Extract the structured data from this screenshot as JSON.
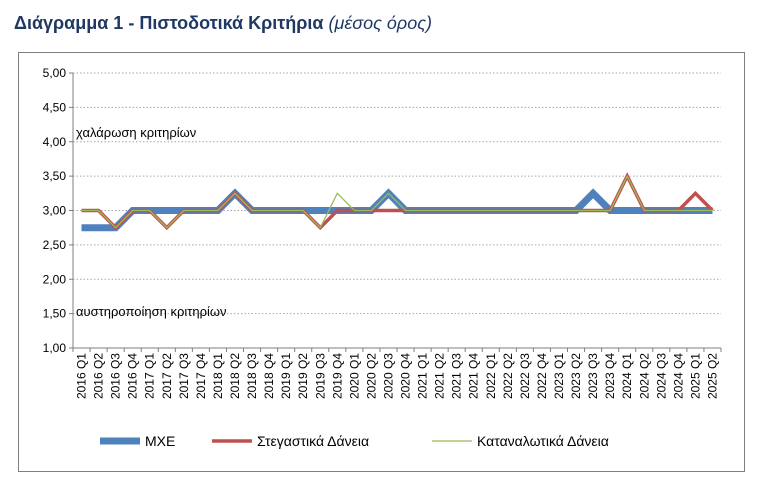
{
  "header": {
    "title_main": "Διάγραμμα 1 - Πιστοδοτικά Κριτήρια",
    "title_sub": "(μέσος όρος)"
  },
  "chart_data": {
    "type": "line",
    "categories": [
      "2016 Q1",
      "2016 Q2",
      "2016 Q3",
      "2016 Q4",
      "2017 Q1",
      "2017 Q2",
      "2017 Q3",
      "2017 Q4",
      "2018 Q1",
      "2018 Q2",
      "2018 Q3",
      "2018 Q4",
      "2019 Q1",
      "2019 Q2",
      "2019 Q3",
      "2019 Q4",
      "2020 Q1",
      "2020 Q2",
      "2020 Q3",
      "2020 Q4",
      "2021 Q1",
      "2021 Q2",
      "2021 Q3",
      "2021 Q4",
      "2022 Q1",
      "2022 Q2",
      "2022 Q3",
      "2022 Q4",
      "2023 Q1",
      "2023 Q2",
      "2023 Q3",
      "2023 Q4",
      "2024 Q1",
      "2024 Q2",
      "2024 Q3",
      "2024 Q4",
      "2025 Q1",
      "2025 Q2"
    ],
    "series": [
      {
        "name": "ΜΧΕ",
        "color": "#4f81bd",
        "values": [
          2.75,
          2.75,
          2.75,
          3.0,
          3.0,
          3.0,
          3.0,
          3.0,
          3.0,
          3.25,
          3.0,
          3.0,
          3.0,
          3.0,
          3.0,
          3.0,
          3.0,
          3.0,
          3.25,
          3.0,
          3.0,
          3.0,
          3.0,
          3.0,
          3.0,
          3.0,
          3.0,
          3.0,
          3.0,
          3.0,
          3.25,
          3.0,
          3.0,
          3.0,
          3.0,
          3.0,
          3.0,
          3.0
        ]
      },
      {
        "name": "Στεγαστικά Δάνεια",
        "color": "#c0504d",
        "values": [
          3.0,
          3.0,
          2.75,
          3.0,
          3.0,
          2.75,
          3.0,
          3.0,
          3.0,
          3.25,
          3.0,
          3.0,
          3.0,
          3.0,
          2.75,
          3.0,
          3.0,
          3.0,
          3.0,
          3.0,
          3.0,
          3.0,
          3.0,
          3.0,
          3.0,
          3.0,
          3.0,
          3.0,
          3.0,
          3.0,
          3.0,
          3.0,
          3.5,
          3.0,
          3.0,
          3.0,
          3.25,
          3.0
        ]
      },
      {
        "name": "Καταναλωτικά Δάνεια",
        "color": "#9bbb59",
        "values": [
          3.0,
          3.0,
          2.75,
          3.0,
          3.0,
          2.75,
          3.0,
          3.0,
          3.0,
          3.25,
          3.0,
          3.0,
          3.0,
          3.0,
          2.75,
          3.25,
          3.0,
          3.0,
          3.25,
          3.0,
          3.0,
          3.0,
          3.0,
          3.0,
          3.0,
          3.0,
          3.0,
          3.0,
          3.0,
          3.0,
          3.0,
          3.0,
          3.5,
          3.0,
          3.0,
          3.0,
          3.0,
          3.0
        ]
      }
    ],
    "yticks": [
      "1,00",
      "1,50",
      "2,00",
      "2,50",
      "3,00",
      "3,50",
      "4,00",
      "4,50",
      "5,00"
    ],
    "ylim": [
      1.0,
      5.0
    ],
    "annotations": {
      "upper": "χαλάρωση κριτηρίων",
      "lower": "αυστηροποίηση κριτηρίων"
    },
    "grid": true,
    "legend_position": "bottom"
  }
}
